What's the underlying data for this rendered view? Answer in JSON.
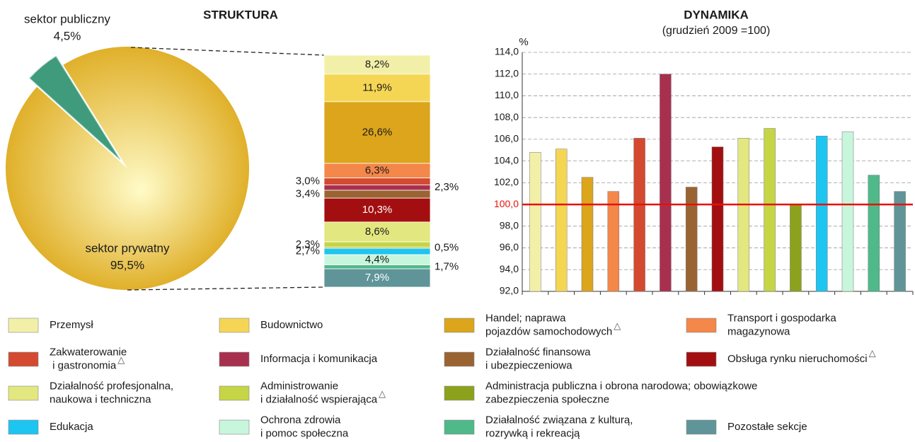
{
  "chart_data": [
    {
      "type": "pie",
      "categories": [
        "sektor publiczny",
        "sektor prywatny"
      ],
      "values": [
        4.5,
        95.5
      ],
      "value_labels": [
        "4,5%",
        "95,5%"
      ],
      "colors": [
        "#3f9b7c",
        "#e8c240"
      ]
    },
    {
      "type": "stacked",
      "title": "STRUKTURA",
      "series": [
        {
          "name": "Przemysł",
          "color": "#f2f0a8",
          "values": [
            8.2
          ],
          "value_labels": [
            "8,2%"
          ]
        },
        {
          "name": "Budownictwo",
          "color": "#f5d654",
          "values": [
            11.9
          ],
          "value_labels": [
            "11,9%"
          ]
        },
        {
          "name": "Handel; naprawa\npojazdów samochodowych",
          "note": "△",
          "color": "#dca51b",
          "values": [
            26.6
          ],
          "value_labels": [
            "26,6%"
          ]
        },
        {
          "name": "Transport i gospodarka\nmagazynowa",
          "color": "#f4874a",
          "values": [
            6.3
          ],
          "value_labels": [
            "6,3%"
          ]
        },
        {
          "name": "Zakwaterowanie\n i gastronomia",
          "note": "△",
          "color": "#d34a30",
          "values": [
            3.0
          ],
          "value_labels": [
            "3,0%"
          ]
        },
        {
          "name": "Informacja i komunikacja",
          "color": "#a8304f",
          "values": [
            2.3
          ],
          "value_labels": [
            "2,3%"
          ]
        },
        {
          "name": "Działalność finansowa\ni ubezpieczeniowa",
          "color": "#9a6432",
          "values": [
            3.4
          ],
          "value_labels": [
            "3,4%"
          ]
        },
        {
          "name": "Obsługa rynku nieruchomości",
          "note": "△",
          "color": "#a30f10",
          "values": [
            10.3
          ],
          "value_labels": [
            "10,3%"
          ]
        },
        {
          "name": "Działalność profesjonalna,\nnaukowa i techniczna",
          "color": "#e3e77f",
          "values": [
            8.6
          ],
          "value_labels": [
            "8,6%"
          ]
        },
        {
          "name": "Administrowanie\ni działalność wspierająca",
          "note": "△",
          "color": "#c5d545",
          "values": [
            2.3
          ],
          "value_labels": [
            "2,3%"
          ]
        },
        {
          "name": "Administracja publiczna i obrona narodowa; obowiązkowe\nzabezpieczenia społeczne",
          "color": "#8da21c",
          "values": [
            0.5
          ],
          "value_labels": [
            "0,5%"
          ]
        },
        {
          "name": "Edukacja",
          "color": "#1ec5f0",
          "values": [
            2.7
          ],
          "value_labels": [
            "2,7%"
          ]
        },
        {
          "name": "Ochrona zdrowia\ni pomoc społeczna",
          "color": "#c8f6dc",
          "values": [
            4.4
          ],
          "value_labels": [
            "4,4%"
          ]
        },
        {
          "name": "Działalność związana z kulturą,\nrozrywką i rekreacją",
          "color": "#4fb98a",
          "values": [
            1.7
          ],
          "value_labels": [
            "1,7%"
          ]
        },
        {
          "name": "Pozostałe sekcje",
          "color": "#5f9598",
          "values": [
            7.9
          ],
          "value_labels": [
            "7,9%"
          ]
        }
      ]
    },
    {
      "type": "bar",
      "title": "DYNAMIKA",
      "subtitle": "(grudzień 2009 =100)",
      "y_label": "%",
      "values": [
        104.8,
        105.1,
        102.5,
        101.2,
        106.1,
        112.0,
        101.6,
        105.3,
        106.1,
        107.0,
        100.0,
        106.3,
        106.7,
        102.7,
        101.2
      ],
      "ylim": [
        92,
        114
      ],
      "yticks": [
        {
          "value": 92,
          "label": "92,0"
        },
        {
          "value": 94,
          "label": "94,0"
        },
        {
          "value": 96,
          "label": "96,0"
        },
        {
          "value": 98,
          "label": "98,0"
        },
        {
          "value": 100,
          "label": "100,0"
        },
        {
          "value": 102,
          "label": "102,0"
        },
        {
          "value": 104,
          "label": "104,0"
        },
        {
          "value": 106,
          "label": "106,0"
        },
        {
          "value": 108,
          "label": "108,0"
        },
        {
          "value": 110,
          "label": "110,0"
        },
        {
          "value": 112,
          "label": "112,0"
        },
        {
          "value": 114,
          "label": "114,0"
        }
      ],
      "grid": true,
      "reference": {
        "value": 100,
        "color": "#e8100c"
      }
    }
  ]
}
